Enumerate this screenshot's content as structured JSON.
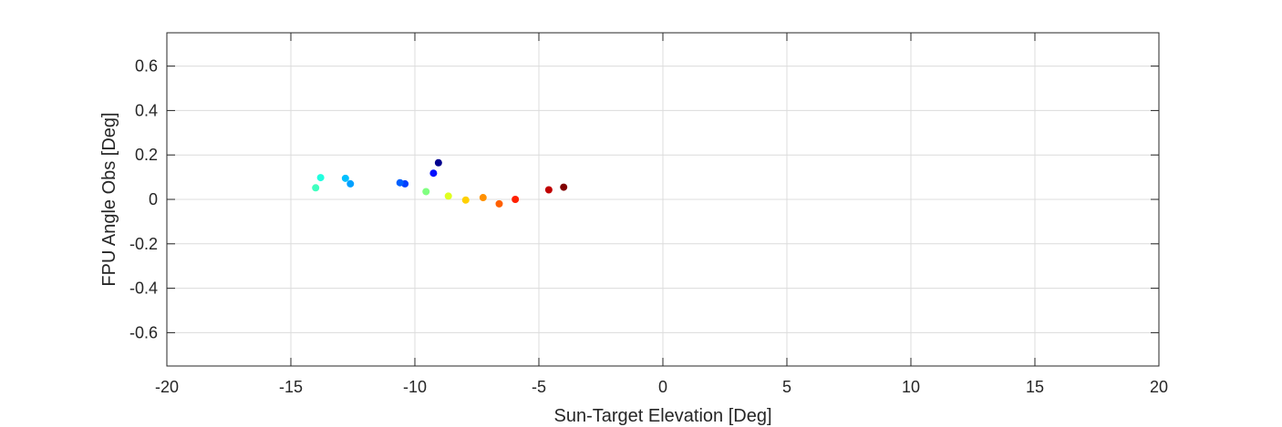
{
  "chart_data": {
    "type": "scatter",
    "title": "",
    "xlabel": "Sun-Target Elevation [Deg]",
    "ylabel": "FPU Angle Obs [Deg]",
    "xlim": [
      -20,
      20
    ],
    "ylim": [
      -0.75,
      0.75
    ],
    "xticks": [
      -20,
      -15,
      -10,
      -5,
      0,
      5,
      10,
      15,
      20
    ],
    "yticks": [
      -0.6,
      -0.4,
      -0.2,
      0,
      0.2,
      0.4,
      0.6
    ],
    "xtick_labels": [
      "-20",
      "-15",
      "-10",
      "-5",
      "0",
      "5",
      "10",
      "15",
      "20"
    ],
    "ytick_labels": [
      "-0.6",
      "-0.4",
      "-0.2",
      "0",
      "0.2",
      "0.4",
      "0.6"
    ],
    "grid": true,
    "legend": "none",
    "colormap": "jet",
    "points": [
      {
        "x": -9.05,
        "y": 0.165,
        "color": "#00008f"
      },
      {
        "x": -9.25,
        "y": 0.118,
        "color": "#0010ff"
      },
      {
        "x": -10.4,
        "y": 0.07,
        "color": "#0040ff"
      },
      {
        "x": -10.6,
        "y": 0.075,
        "color": "#0060ff"
      },
      {
        "x": -12.6,
        "y": 0.07,
        "color": "#00a0ff"
      },
      {
        "x": -12.8,
        "y": 0.095,
        "color": "#00c0ff"
      },
      {
        "x": -13.8,
        "y": 0.098,
        "color": "#20ffdf"
      },
      {
        "x": -14.0,
        "y": 0.052,
        "color": "#40ffbf"
      },
      {
        "x": -9.55,
        "y": 0.035,
        "color": "#80ff80"
      },
      {
        "x": -8.65,
        "y": 0.015,
        "color": "#dfff20"
      },
      {
        "x": -7.95,
        "y": -0.003,
        "color": "#ffd000"
      },
      {
        "x": -7.25,
        "y": 0.008,
        "color": "#ff9000"
      },
      {
        "x": -6.6,
        "y": -0.02,
        "color": "#ff6000"
      },
      {
        "x": -5.95,
        "y": 0.0,
        "color": "#ff2000"
      },
      {
        "x": -4.6,
        "y": 0.043,
        "color": "#c00000"
      },
      {
        "x": -4.0,
        "y": 0.055,
        "color": "#800000"
      }
    ]
  }
}
